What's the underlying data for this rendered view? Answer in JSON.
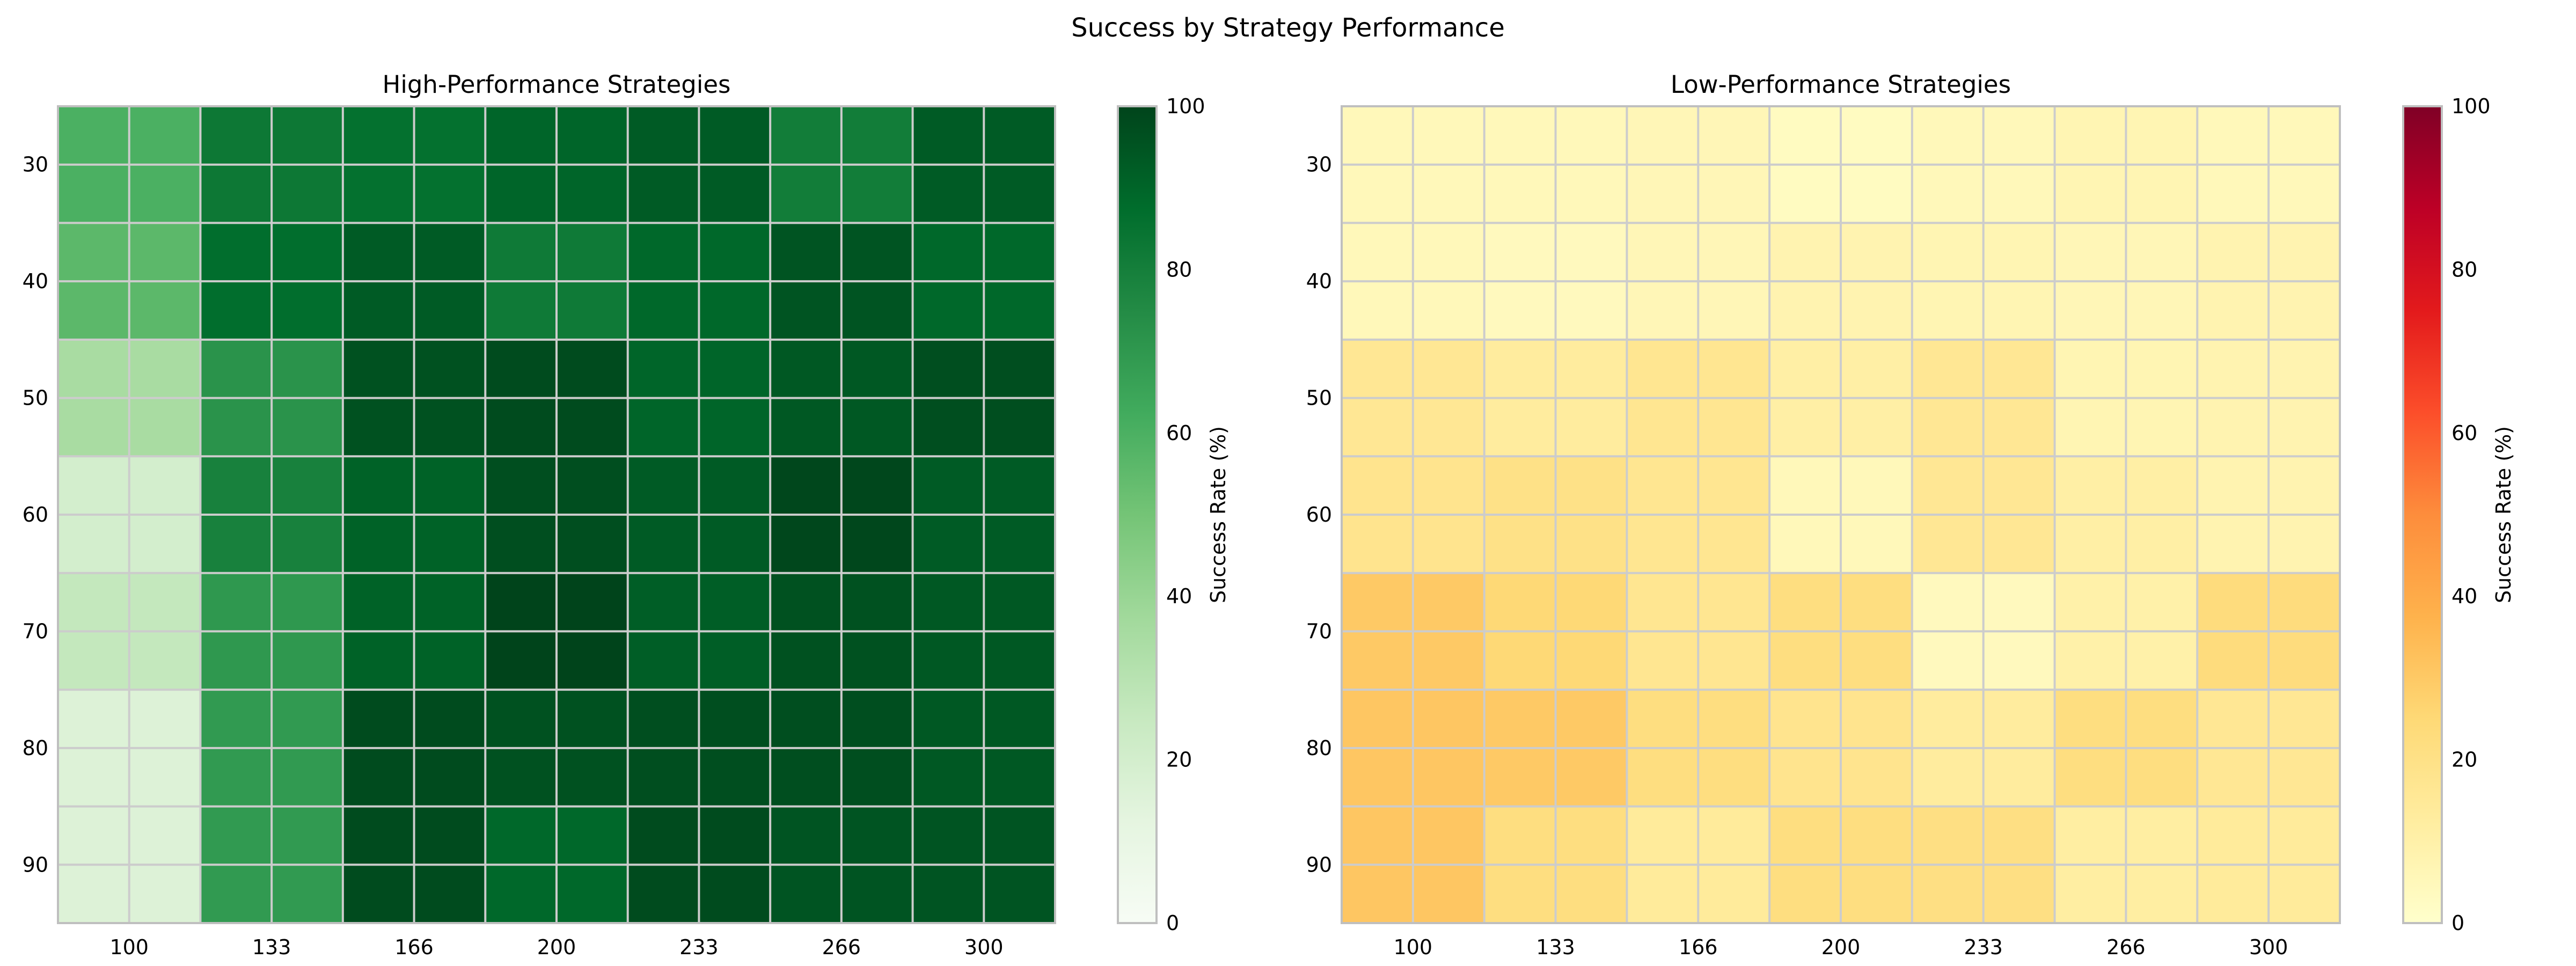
{
  "figure": {
    "title": "Success by Strategy Performance"
  },
  "chart_data": [
    {
      "type": "heatmap",
      "title": "High-Performance Strategies",
      "colormap": "Greens",
      "x_tick_labels": [
        "100",
        "133",
        "166",
        "200",
        "233",
        "266",
        "300"
      ],
      "y_tick_labels": [
        "30",
        "40",
        "50",
        "60",
        "70",
        "80",
        "90"
      ],
      "colorbar": {
        "label": "Success Rate (%)",
        "range": [
          0,
          100
        ],
        "ticks": [
          "0",
          "20",
          "40",
          "60",
          "80",
          "100"
        ]
      },
      "values": [
        [
          60,
          83,
          86,
          90,
          93,
          81,
          93
        ],
        [
          56,
          87,
          93,
          82,
          89,
          95,
          89
        ],
        [
          35,
          72,
          96,
          98,
          90,
          94,
          97
        ],
        [
          20,
          79,
          91,
          97,
          93,
          99,
          93
        ],
        [
          26,
          70,
          91,
          100,
          92,
          96,
          94
        ],
        [
          16,
          69,
          98,
          96,
          97,
          97,
          94
        ],
        [
          16,
          69,
          98,
          89,
          98,
          95,
          95
        ]
      ]
    },
    {
      "type": "heatmap",
      "title": "Low-Performance Strategies",
      "colormap": "YlOrRd",
      "x_tick_labels": [
        "100",
        "133",
        "166",
        "200",
        "233",
        "266",
        "300"
      ],
      "y_tick_labels": [
        "30",
        "40",
        "50",
        "60",
        "70",
        "80",
        "90"
      ],
      "colorbar": {
        "label": "Success Rate (%)",
        "range": [
          0,
          100
        ],
        "ticks": [
          "0",
          "20",
          "40",
          "60",
          "80",
          "100"
        ]
      },
      "values": [
        [
          5,
          5,
          6,
          3,
          5,
          7,
          5
        ],
        [
          5,
          4,
          6,
          8,
          7,
          6,
          8
        ],
        [
          16,
          13,
          17,
          11,
          16,
          7,
          8
        ],
        [
          18,
          20,
          17,
          5,
          16,
          11,
          8
        ],
        [
          30,
          25,
          17,
          22,
          4,
          10,
          23
        ],
        [
          31,
          30,
          22,
          18,
          13,
          22,
          16
        ],
        [
          31,
          22,
          14,
          22,
          21,
          12,
          14
        ]
      ]
    }
  ],
  "colors": {
    "greens": [
      "#f7fcf5",
      "#e5f5e0",
      "#c7e9c0",
      "#a1d99b",
      "#74c476",
      "#41ab5d",
      "#238b45",
      "#006d2c",
      "#00441b"
    ],
    "ylorrd": [
      "#ffffcc",
      "#ffeda0",
      "#fed976",
      "#feb24c",
      "#fd8d3c",
      "#fc4e2a",
      "#e31a1c",
      "#bd0026",
      "#800026"
    ],
    "grid": "#cccccc",
    "frame": "#bfbfbf",
    "tick_mark": "#262626"
  }
}
